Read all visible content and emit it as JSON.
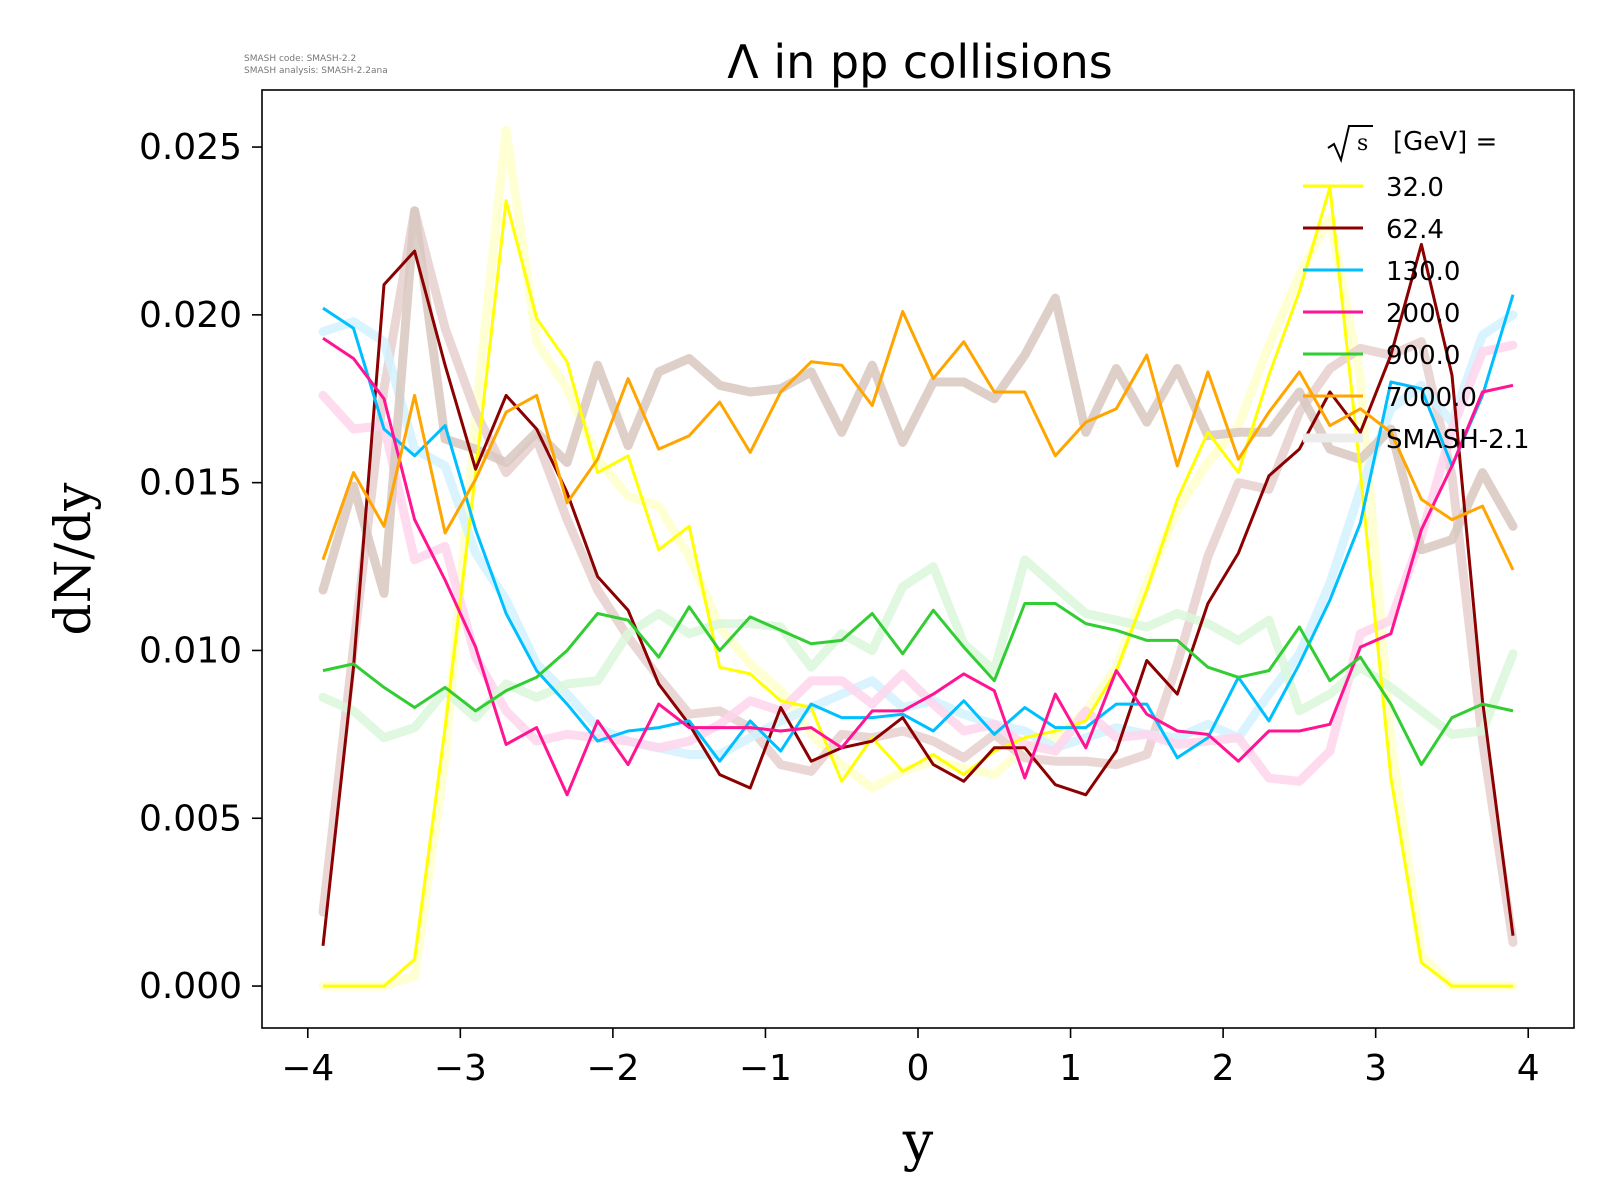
{
  "chart_data": {
    "type": "line",
    "title": "Λ in pp collisions",
    "xlabel": "y",
    "ylabel": "dN/dy",
    "xlim": [
      -4.3,
      4.3
    ],
    "ylim": [
      -0.00125,
      0.0267
    ],
    "xticks": [
      -4,
      -3,
      -2,
      -1,
      0,
      1,
      2,
      3,
      4
    ],
    "xtick_labels": [
      "−4",
      "−3",
      "−2",
      "−1",
      "0",
      "1",
      "2",
      "3",
      "4"
    ],
    "yticks": [
      0,
      0.005,
      0.01,
      0.015,
      0.02,
      0.025
    ],
    "ytick_labels": [
      "0.000",
      "0.005",
      "0.010",
      "0.015",
      "0.020",
      "0.025"
    ],
    "code_info": [
      "SMASH code:      SMASH-2.2",
      "SMASH analysis: SMASH-2.2ana"
    ],
    "legend": {
      "title_symbol": "s",
      "title_text": "[GeV] =",
      "placement": "top-right",
      "reference_label": "SMASH-2.1"
    },
    "x": [
      -3.9,
      -3.7,
      -3.5,
      -3.3,
      -3.1,
      -2.9,
      -2.7,
      -2.5,
      -2.3,
      -2.1,
      -1.9,
      -1.7,
      -1.5,
      -1.3,
      -1.1,
      -0.9,
      -0.7,
      -0.5,
      -0.3,
      -0.1,
      0.1,
      0.3,
      0.5,
      0.7,
      0.9,
      1.1,
      1.3,
      1.5,
      1.7,
      1.9,
      2.1,
      2.3,
      2.5,
      2.7,
      2.9,
      3.1,
      3.3,
      3.5,
      3.7,
      3.9
    ],
    "series": [
      {
        "name": "32.0",
        "color": "#ffff00",
        "ref_color": "#ffffcc",
        "values": [
          0.0,
          0.0,
          0.0,
          0.0008,
          0.0077,
          0.0153,
          0.0234,
          0.0199,
          0.0186,
          0.0153,
          0.0158,
          0.013,
          0.0137,
          0.0095,
          0.0093,
          0.0085,
          0.0083,
          0.0061,
          0.0074,
          0.0064,
          0.0069,
          0.0063,
          0.007,
          0.0074,
          0.0076,
          0.0079,
          0.0094,
          0.0118,
          0.0145,
          0.0165,
          0.0153,
          0.0182,
          0.0207,
          0.0238,
          0.0153,
          0.0062,
          0.0007,
          0.0,
          0.0,
          0.0
        ],
        "ref_values": [
          0.0,
          0.0,
          0.0,
          0.0003,
          0.0068,
          0.017,
          0.0255,
          0.0192,
          0.0178,
          0.0157,
          0.0146,
          0.0143,
          0.0128,
          0.0107,
          0.0096,
          0.0088,
          0.0075,
          0.0066,
          0.0059,
          0.0064,
          0.0067,
          0.0065,
          0.0063,
          0.0071,
          0.0074,
          0.0082,
          0.0095,
          0.012,
          0.0142,
          0.0156,
          0.0167,
          0.0191,
          0.0212,
          0.0229,
          0.0181,
          0.0073,
          0.0009,
          0.0,
          0.0,
          0.0
        ]
      },
      {
        "name": "62.4",
        "color": "#8b0000",
        "ref_color": "#e8cfcf",
        "values": [
          0.0012,
          0.0095,
          0.0209,
          0.0219,
          0.0185,
          0.0154,
          0.0176,
          0.0166,
          0.0147,
          0.0122,
          0.0112,
          0.009,
          0.0078,
          0.0063,
          0.0059,
          0.0083,
          0.0067,
          0.0071,
          0.0073,
          0.008,
          0.0066,
          0.0061,
          0.0071,
          0.0071,
          0.006,
          0.0057,
          0.007,
          0.0097,
          0.0087,
          0.0114,
          0.0129,
          0.0152,
          0.016,
          0.0177,
          0.0165,
          0.0188,
          0.0221,
          0.0182,
          0.0085,
          0.0015
        ],
        "ref_values": [
          0.0022,
          0.0101,
          0.0178,
          0.0231,
          0.0196,
          0.0171,
          0.0153,
          0.0163,
          0.0139,
          0.0118,
          0.0104,
          0.0092,
          0.0081,
          0.0082,
          0.0077,
          0.0066,
          0.0064,
          0.0075,
          0.0074,
          0.0076,
          0.0073,
          0.0068,
          0.0075,
          0.0068,
          0.0067,
          0.0067,
          0.0066,
          0.0069,
          0.0096,
          0.0128,
          0.015,
          0.0148,
          0.0171,
          0.0184,
          0.019,
          0.0188,
          0.0192,
          0.0152,
          0.0073,
          0.0013
        ]
      },
      {
        "name": "130.0",
        "color": "#00bfff",
        "ref_color": "#d4f2ff",
        "values": [
          0.0202,
          0.0196,
          0.0166,
          0.0158,
          0.0167,
          0.0136,
          0.0111,
          0.0094,
          0.0084,
          0.0073,
          0.0076,
          0.0077,
          0.0079,
          0.0067,
          0.0079,
          0.007,
          0.0084,
          0.008,
          0.008,
          0.0081,
          0.0076,
          0.0085,
          0.0075,
          0.0083,
          0.0077,
          0.0077,
          0.0084,
          0.0084,
          0.0068,
          0.0074,
          0.0092,
          0.0079,
          0.0096,
          0.0115,
          0.0138,
          0.018,
          0.0178,
          0.0155,
          0.0176,
          0.0206
        ],
        "ref_values": [
          0.0195,
          0.0198,
          0.0192,
          0.016,
          0.0155,
          0.0129,
          0.0115,
          0.0096,
          0.0087,
          0.0077,
          0.0073,
          0.0071,
          0.0069,
          0.0069,
          0.0074,
          0.0079,
          0.0083,
          0.0087,
          0.0091,
          0.0083,
          0.0085,
          0.0081,
          0.0078,
          0.0076,
          0.0071,
          0.0074,
          0.0077,
          0.0075,
          0.0074,
          0.0078,
          0.0074,
          0.0087,
          0.0099,
          0.012,
          0.0148,
          0.0172,
          0.0179,
          0.0168,
          0.0194,
          0.02
        ]
      },
      {
        "name": "200.0",
        "color": "#ff1493",
        "ref_color": "#ffd5ec",
        "values": [
          0.0193,
          0.0187,
          0.0175,
          0.0139,
          0.0121,
          0.0101,
          0.0072,
          0.0077,
          0.0057,
          0.0079,
          0.0066,
          0.0084,
          0.0077,
          0.0077,
          0.0077,
          0.0076,
          0.0077,
          0.0071,
          0.0082,
          0.0082,
          0.0087,
          0.0093,
          0.0088,
          0.0062,
          0.0087,
          0.0071,
          0.0094,
          0.0081,
          0.0076,
          0.0075,
          0.0067,
          0.0076,
          0.0076,
          0.0078,
          0.0101,
          0.0105,
          0.0136,
          0.0155,
          0.0177,
          0.0179
        ],
        "ref_values": [
          0.0176,
          0.0166,
          0.0167,
          0.0127,
          0.0131,
          0.0098,
          0.0082,
          0.0073,
          0.0075,
          0.0074,
          0.0073,
          0.0071,
          0.0073,
          0.0078,
          0.0085,
          0.0082,
          0.0091,
          0.0091,
          0.0084,
          0.0093,
          0.0084,
          0.0076,
          0.0078,
          0.0072,
          0.007,
          0.0082,
          0.0074,
          0.0075,
          0.0072,
          0.0073,
          0.0074,
          0.0062,
          0.0061,
          0.007,
          0.0105,
          0.0109,
          0.0134,
          0.0166,
          0.0189,
          0.0191
        ]
      },
      {
        "name": "900.0",
        "color": "#32cd32",
        "ref_color": "#d9f7d9",
        "values": [
          0.0094,
          0.0096,
          0.0089,
          0.0083,
          0.0089,
          0.0082,
          0.0088,
          0.0092,
          0.01,
          0.0111,
          0.0109,
          0.0098,
          0.0113,
          0.01,
          0.011,
          0.0106,
          0.0102,
          0.0103,
          0.0111,
          0.0099,
          0.0112,
          0.0101,
          0.0091,
          0.0114,
          0.0114,
          0.0108,
          0.0106,
          0.0103,
          0.0103,
          0.0095,
          0.0092,
          0.0094,
          0.0107,
          0.0091,
          0.0098,
          0.0084,
          0.0066,
          0.008,
          0.0084,
          0.0082
        ],
        "ref_values": [
          0.0086,
          0.0082,
          0.0074,
          0.0077,
          0.0088,
          0.008,
          0.009,
          0.0086,
          0.009,
          0.0091,
          0.0105,
          0.0111,
          0.0105,
          0.0108,
          0.0108,
          0.0107,
          0.0095,
          0.0105,
          0.01,
          0.0119,
          0.0125,
          0.0102,
          0.0094,
          0.0127,
          0.0119,
          0.0111,
          0.0109,
          0.0107,
          0.0111,
          0.0108,
          0.0103,
          0.0109,
          0.0082,
          0.0087,
          0.0095,
          0.0089,
          0.0082,
          0.0075,
          0.0076,
          0.0099
        ]
      },
      {
        "name": "7000.0",
        "color": "#ffa500",
        "ref_color": "#d8c8c0",
        "values": [
          0.0127,
          0.0153,
          0.0137,
          0.0176,
          0.0135,
          0.0151,
          0.0171,
          0.0176,
          0.0144,
          0.0157,
          0.0181,
          0.016,
          0.0164,
          0.0174,
          0.0159,
          0.0177,
          0.0186,
          0.0185,
          0.0173,
          0.0201,
          0.0181,
          0.0192,
          0.0177,
          0.0177,
          0.0158,
          0.0168,
          0.0172,
          0.0188,
          0.0155,
          0.0183,
          0.0157,
          0.0171,
          0.0183,
          0.0167,
          0.0172,
          0.0165,
          0.0145,
          0.0139,
          0.0143,
          0.0124
        ],
        "ref_values": [
          0.0118,
          0.0149,
          0.0117,
          0.0231,
          0.0163,
          0.016,
          0.0156,
          0.0165,
          0.0156,
          0.0185,
          0.0161,
          0.0183,
          0.0187,
          0.0179,
          0.0177,
          0.0178,
          0.0183,
          0.0165,
          0.0185,
          0.0162,
          0.018,
          0.018,
          0.0175,
          0.0188,
          0.0205,
          0.0165,
          0.0184,
          0.0168,
          0.0184,
          0.0164,
          0.0165,
          0.0165,
          0.0177,
          0.016,
          0.0157,
          0.0166,
          0.013,
          0.0133,
          0.0153,
          0.0137
        ]
      }
    ]
  }
}
